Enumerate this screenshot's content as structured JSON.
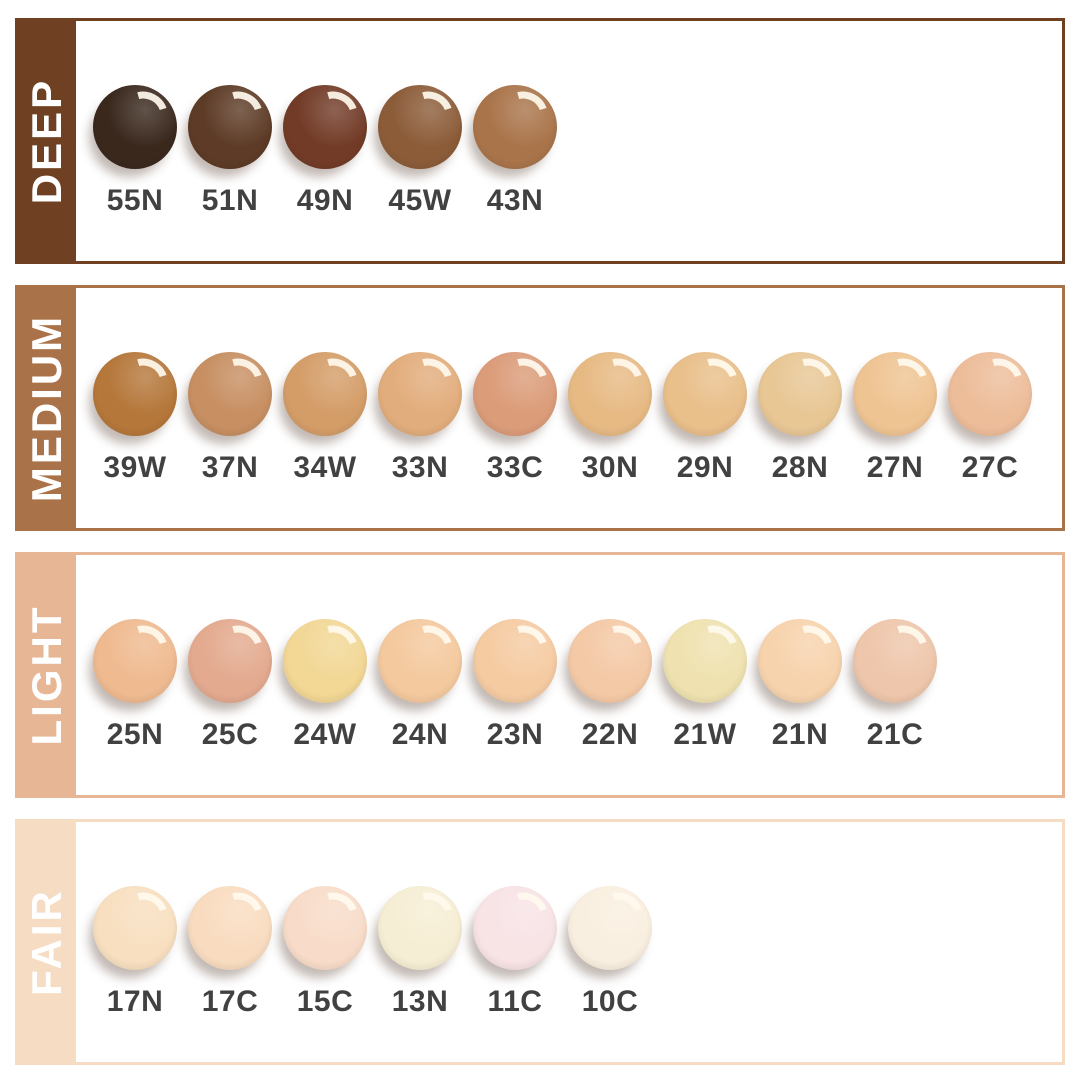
{
  "page": {
    "background": "#ffffff",
    "code_text_color": "#414141"
  },
  "rows": [
    {
      "name": "deep",
      "label": "DEEP",
      "accent": "#6f4022",
      "swatches": [
        {
          "code": "55N",
          "color": "#3a281d"
        },
        {
          "code": "51N",
          "color": "#5d3b26"
        },
        {
          "code": "49N",
          "color": "#723b27"
        },
        {
          "code": "45W",
          "color": "#8c5c39"
        },
        {
          "code": "43N",
          "color": "#a9744a"
        }
      ]
    },
    {
      "name": "medium",
      "label": "MEDIUM",
      "accent": "#aa7249",
      "swatches": [
        {
          "code": "39W",
          "color": "#b5773a"
        },
        {
          "code": "37N",
          "color": "#c78f62"
        },
        {
          "code": "34W",
          "color": "#d49d68"
        },
        {
          "code": "33N",
          "color": "#e2ad7c"
        },
        {
          "code": "33C",
          "color": "#db9c79"
        },
        {
          "code": "30N",
          "color": "#e7ba84"
        },
        {
          "code": "29N",
          "color": "#e9bf8a"
        },
        {
          "code": "28N",
          "color": "#e8c795"
        },
        {
          "code": "27N",
          "color": "#efc493"
        },
        {
          "code": "27C",
          "color": "#edbd9a"
        }
      ]
    },
    {
      "name": "light",
      "label": "LIGHT",
      "accent": "#e7b795",
      "swatches": [
        {
          "code": "25N",
          "color": "#efba90"
        },
        {
          "code": "25C",
          "color": "#e3aa8f"
        },
        {
          "code": "24W",
          "color": "#f2d795"
        },
        {
          "code": "24N",
          "color": "#f4c99e"
        },
        {
          "code": "23N",
          "color": "#f5cba2"
        },
        {
          "code": "22N",
          "color": "#f4c9a6"
        },
        {
          "code": "21W",
          "color": "#efe2b0"
        },
        {
          "code": "21N",
          "color": "#f7d3ad"
        },
        {
          "code": "21C",
          "color": "#eec6ab"
        }
      ]
    },
    {
      "name": "fair",
      "label": "FAIR",
      "accent": "#f6dcc2",
      "swatches": [
        {
          "code": "17N",
          "color": "#f8dfc0"
        },
        {
          "code": "17C",
          "color": "#f9dcc0"
        },
        {
          "code": "15C",
          "color": "#f8dcc9"
        },
        {
          "code": "13N",
          "color": "#f6eed4"
        },
        {
          "code": "11C",
          "color": "#f8e3e5"
        },
        {
          "code": "10C",
          "color": "#f9efe0"
        }
      ]
    }
  ]
}
